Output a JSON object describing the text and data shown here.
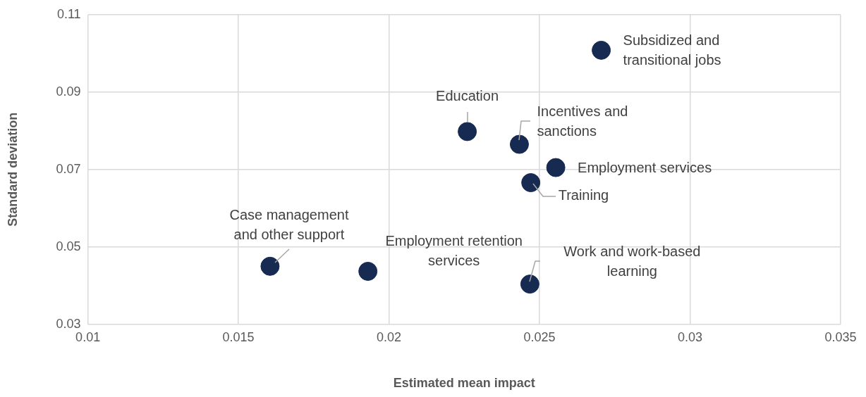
{
  "chart_data": {
    "type": "scatter",
    "xlabel": "Estimated mean impact",
    "ylabel": "Standard deviation",
    "x": [
      0.02705,
      0.0226,
      0.02433,
      0.02554,
      0.02471,
      0.01605,
      0.0193,
      0.02468
    ],
    "series": [
      {
        "color": "#172b52",
        "values": [
          0.1008,
          0.0798,
          0.0765,
          0.0705,
          0.0666,
          0.045,
          0.0437,
          0.0404
        ]
      }
    ],
    "xlim": [
      0.01,
      0.035
    ],
    "xticks": [
      0.01,
      0.015,
      0.02,
      0.025,
      0.03,
      0.035
    ],
    "ylim": [
      0.03,
      0.11
    ],
    "yticks": [
      0.03,
      0.05,
      0.07,
      0.09,
      0.11
    ],
    "grid": true,
    "legend": false,
    "marker": "circle",
    "annotations": [
      {
        "text": "Subsidized and\ntransitional jobs",
        "x": 0.02705,
        "y": 0.1008
      },
      {
        "text": "Education",
        "x": 0.0226,
        "y": 0.0798
      },
      {
        "text": "Incentives and\nsanctions",
        "x": 0.02433,
        "y": 0.0765
      },
      {
        "text": "Employment services",
        "x": 0.02554,
        "y": 0.0705
      },
      {
        "text": "Training",
        "x": 0.02471,
        "y": 0.0666
      },
      {
        "text": "Case management\nand other support",
        "x": 0.01605,
        "y": 0.045
      },
      {
        "text": "Employment retention\nservices",
        "x": 0.0193,
        "y": 0.0437
      },
      {
        "text": "Work and work-based\nlearning",
        "x": 0.02468,
        "y": 0.0404
      }
    ]
  }
}
